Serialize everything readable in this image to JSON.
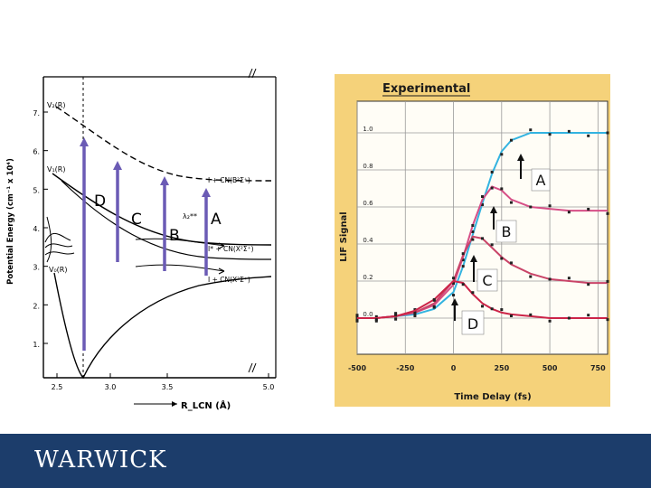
{
  "chart_data": [
    {
      "type": "line",
      "title": "",
      "xlabel": "R_LCN (Å)",
      "ylabel": "Potential Energy (cm⁻¹ x 10⁴)",
      "x_ticks": [
        "2.5",
        "3.0",
        "3.5",
        "5.0"
      ],
      "y_ticks": [
        "1.",
        "2.",
        "3.",
        "4.",
        "5.",
        "6.",
        "7."
      ],
      "curve_labels": [
        "V₂(R)",
        "V₁(R)",
        "V₀(R)"
      ],
      "asymptote_labels": [
        "I + CN(B²Σ⁺)",
        "I* + CN(X²Σ⁺)",
        "I + CN(X²Σ⁺)"
      ],
      "arrow_labels": [
        "D",
        "C",
        "B",
        "A"
      ],
      "lambda_label": "λ₂**",
      "arrow_color": "#6b5bb5"
    },
    {
      "type": "scatter",
      "title": "Experimental",
      "xlabel": "Time Delay (fs)",
      "ylabel": "LIF Signal",
      "x_ticks": [
        "-500",
        "-250",
        "0",
        "250",
        "500",
        "750"
      ],
      "y_ticks": [
        "0.0",
        "0.2",
        "0.4",
        "0.6",
        "0.8",
        "1.0"
      ],
      "xlim": [
        -500,
        800
      ],
      "ylim": [
        0.0,
        1.1
      ],
      "background": "#f5d27a",
      "series": [
        {
          "name": "A",
          "color": "#33b3e0",
          "x": [
            -500,
            -400,
            -300,
            -200,
            -100,
            0,
            50,
            100,
            150,
            200,
            250,
            300,
            400,
            500,
            600,
            700,
            800
          ],
          "values": [
            0.0,
            0.0,
            0.01,
            0.02,
            0.05,
            0.14,
            0.28,
            0.45,
            0.62,
            0.78,
            0.9,
            0.96,
            1.0,
            1.0,
            1.0,
            1.0,
            1.0
          ]
        },
        {
          "name": "B",
          "color": "#d64e86",
          "x": [
            -500,
            -400,
            -300,
            -200,
            -100,
            0,
            50,
            100,
            150,
            200,
            250,
            300,
            400,
            500,
            600,
            700,
            800
          ],
          "values": [
            0.0,
            0.0,
            0.01,
            0.03,
            0.07,
            0.18,
            0.33,
            0.5,
            0.64,
            0.71,
            0.69,
            0.64,
            0.6,
            0.59,
            0.58,
            0.58,
            0.58
          ]
        },
        {
          "name": "C",
          "color": "#c94468",
          "x": [
            -500,
            -400,
            -300,
            -200,
            -100,
            0,
            50,
            100,
            150,
            200,
            250,
            300,
            400,
            500,
            600,
            700,
            800
          ],
          "values": [
            0.0,
            0.0,
            0.01,
            0.03,
            0.08,
            0.2,
            0.34,
            0.44,
            0.43,
            0.38,
            0.33,
            0.29,
            0.24,
            0.21,
            0.2,
            0.19,
            0.19
          ]
        },
        {
          "name": "D",
          "color": "#cc2448",
          "x": [
            -500,
            -400,
            -300,
            -200,
            -100,
            0,
            50,
            100,
            150,
            200,
            250,
            300,
            400,
            500,
            600,
            700,
            800
          ],
          "values": [
            0.0,
            0.0,
            0.01,
            0.04,
            0.1,
            0.2,
            0.19,
            0.13,
            0.08,
            0.05,
            0.03,
            0.02,
            0.01,
            0.0,
            0.0,
            0.0,
            0.0
          ]
        }
      ],
      "annotations": [
        "A",
        "B",
        "C",
        "D"
      ]
    }
  ],
  "footer": {
    "logo_text": "WARWICK"
  }
}
